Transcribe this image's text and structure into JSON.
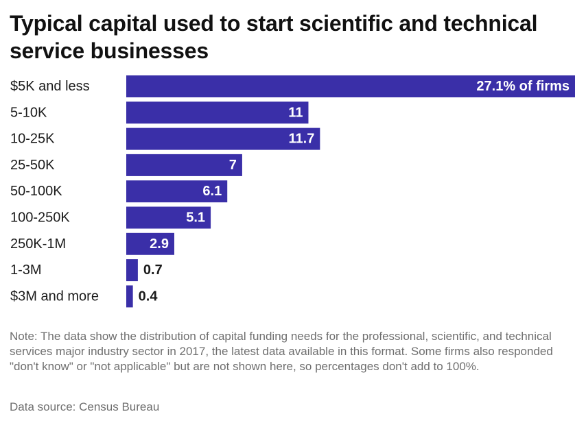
{
  "chart_data": {
    "type": "bar",
    "orientation": "horizontal",
    "title": "Typical capital used to start scientific and technical service businesses",
    "categories": [
      "$5K and less",
      "5-10K",
      "10-25K",
      "25-50K",
      "50-100K",
      "100-250K",
      "250K-1M",
      "1-3M",
      "$3M and more"
    ],
    "values": [
      27.1,
      11,
      11.7,
      7,
      6.1,
      5.1,
      2.9,
      0.7,
      0.4
    ],
    "value_labels": [
      "27.1% of firms",
      "11",
      "11.7",
      "7",
      "6.1",
      "5.1",
      "2.9",
      "0.7",
      "0.4"
    ],
    "xlim": [
      0,
      27.1
    ],
    "grid": false,
    "bar_color": "#3a2fa8",
    "label_inside_color": "#ffffff",
    "label_outside_color": "#1a1a1a"
  },
  "note": "Note: The data show the distribution of capital funding needs for the professional, scientific, and technical services major industry sector in 2017, the latest data available in this format. Some firms also responded \"don't know\" or \"not applicable\" but are not shown here, so percentages don't add to 100%.",
  "source": "Data source: Census Bureau"
}
